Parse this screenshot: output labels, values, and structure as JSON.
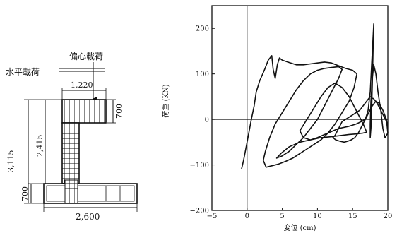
{
  "diagram": {
    "eccentric_load_label": "偏心載荷",
    "horizontal_load_label": "水平載荷",
    "dimensions": {
      "top_width": "1,220",
      "top_depth": "700",
      "column_height": "2,415",
      "total_height": "3,115",
      "base_height": "700",
      "base_width": "2,600"
    }
  },
  "chart_data": {
    "type": "line",
    "title": "",
    "xlabel": "変位 (cm)",
    "ylabel": "荷重 (KN)",
    "xlim": [
      -5,
      20
    ],
    "ylim": [
      -200,
      250
    ],
    "xticks": [
      -5,
      0,
      5,
      10,
      15,
      20
    ],
    "yticks": [
      -200,
      -100,
      0,
      100,
      200
    ],
    "xtick_labels": [
      "−5",
      "0",
      "5",
      "10",
      "15",
      "20"
    ],
    "ytick_labels": [
      "−200",
      "−100",
      "0",
      "100",
      "200"
    ],
    "grid": false,
    "reference_lines": {
      "x": 0,
      "y": 0
    },
    "series": [
      {
        "x": [
          -0.8,
          -0.5,
          0,
          0.3,
          0.6,
          1.0,
          1.3,
          1.8,
          2.5,
          3.0,
          3.5,
          3.7,
          4.0,
          4.3,
          4.6,
          5.0,
          6.0,
          7.0,
          8.0,
          9.0,
          10.0,
          11.0,
          12.0,
          13.0,
          14.0,
          15.0,
          15.6,
          15.2,
          14.5,
          13.5,
          12.5,
          11.5,
          10.5,
          9.5,
          8.5,
          7.5,
          6.5,
          5.5,
          4.5,
          3.5,
          2.7,
          2.3,
          2.6,
          3.2,
          4.0,
          5.0,
          6.0,
          7.0,
          8.0,
          9.0,
          10.0,
          11.0,
          12.0,
          13.0,
          13.5,
          13.0,
          12.0,
          11.0,
          10.0,
          9.0,
          8.0,
          7.0,
          6.0,
          5.0,
          4.2,
          4.8,
          6.0,
          7.5,
          9.0,
          10.5,
          12.0,
          13.5,
          14.5,
          15.5,
          16.5,
          17.0,
          16.5,
          15.5,
          14.5,
          13.5,
          12.5,
          11.5,
          10.5,
          9.5,
          8.5,
          7.5,
          8.0,
          9.0,
          10.0,
          11.5,
          13.0,
          14.5,
          15.5,
          16.2,
          16.8,
          17.2,
          17.5,
          17.7,
          17.9,
          18.0,
          17.9,
          17.8,
          17.7,
          17.6,
          17.5,
          17.5,
          17.6,
          17.8,
          18.0,
          18.3,
          18.6,
          19.0,
          19.3,
          19.6,
          20.0,
          19.8,
          19.3,
          18.8,
          18.3,
          17.8,
          17.3,
          16.8,
          16.3,
          15.8,
          15.3,
          14.8,
          14.3,
          13.8,
          13.2,
          12.6,
          12.2,
          12.5,
          13.0,
          13.5,
          14.0,
          14.5,
          15.0,
          15.5,
          16.0,
          16.5,
          17.0,
          17.5,
          18.0,
          18.5,
          19.0,
          19.5,
          20.0
        ],
        "y": [
          -110,
          -90,
          -50,
          -25,
          0,
          30,
          60,
          85,
          110,
          130,
          140,
          110,
          90,
          120,
          135,
          130,
          125,
          120,
          120,
          122,
          124,
          126,
          124,
          118,
          112,
          108,
          100,
          70,
          40,
          15,
          -10,
          -30,
          -45,
          -55,
          -65,
          -75,
          -85,
          -92,
          -98,
          -102,
          -105,
          -90,
          -70,
          -40,
          -10,
          15,
          40,
          65,
          85,
          100,
          108,
          112,
          114,
          116,
          110,
          90,
          60,
          30,
          0,
          -20,
          -40,
          -55,
          -70,
          -80,
          -85,
          -75,
          -60,
          -50,
          -45,
          -40,
          -38,
          -35,
          -33,
          -32,
          -30,
          -28,
          -10,
          20,
          50,
          70,
          80,
          70,
          50,
          25,
          0,
          -25,
          -40,
          -45,
          -40,
          -30,
          -20,
          -15,
          -10,
          -5,
          0,
          20,
          60,
          120,
          180,
          210,
          150,
          80,
          20,
          -20,
          -40,
          -10,
          40,
          90,
          120,
          100,
          60,
          20,
          -20,
          -40,
          -30,
          0,
          20,
          35,
          40,
          30,
          15,
          0,
          -15,
          -30,
          -40,
          -45,
          -48,
          -50,
          -48,
          -45,
          -40,
          -35,
          -20,
          -5,
          0,
          5,
          10,
          15,
          20,
          30,
          40,
          50,
          45,
          35,
          20,
          5,
          -10
        ]
      }
    ]
  }
}
